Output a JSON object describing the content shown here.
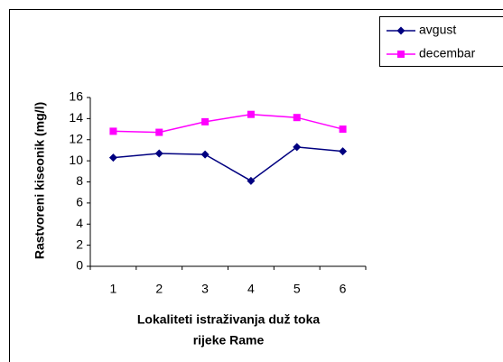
{
  "chart_data": {
    "type": "line",
    "categories": [
      "1",
      "2",
      "3",
      "4",
      "5",
      "6"
    ],
    "series": [
      {
        "name": "avgust",
        "color": "#000080",
        "marker": "diamond",
        "values": [
          10.3,
          10.7,
          10.6,
          8.1,
          11.3,
          10.9
        ]
      },
      {
        "name": "decembar",
        "color": "#ff00ff",
        "marker": "square",
        "values": [
          12.8,
          12.7,
          13.7,
          14.4,
          14.1,
          13.0
        ]
      }
    ],
    "ylabel": "Rastvoreni kiseonik (mg/l)",
    "xlabel": [
      "Lokaliteti istraživanja duž toka",
      "rijeke Rame"
    ],
    "ylim": [
      0,
      16
    ],
    "yticks": [
      0,
      2,
      4,
      6,
      8,
      10,
      12,
      14,
      16
    ],
    "legend": "top-right"
  }
}
